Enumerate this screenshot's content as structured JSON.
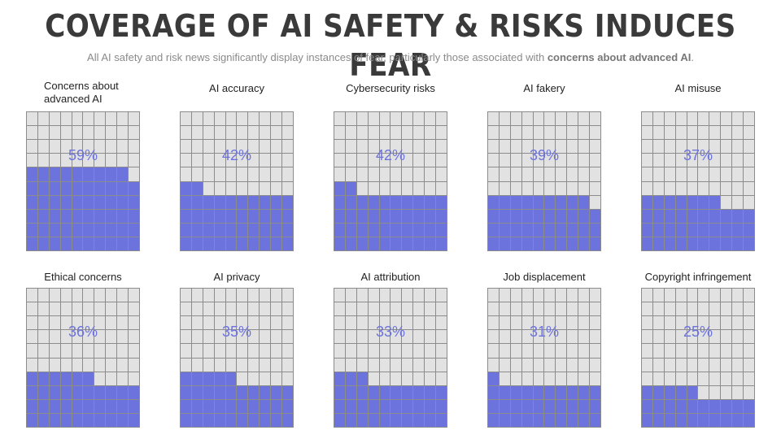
{
  "title": "COVERAGE OF AI SAFETY & RISKS INDUCES FEAR",
  "subtitle_prefix": "All AI safety and risk news significantly display instances of fear, particularly those associated with ",
  "subtitle_emphasis": "concerns about advanced AI",
  "subtitle_suffix": ".",
  "colors": {
    "filled": "#6d73dd",
    "empty": "#e2e2e2",
    "grid": "#8c8c8c"
  },
  "chart_data": {
    "type": "waffle",
    "grid": [
      10,
      10
    ],
    "categories": [
      "Concerns about advanced AI",
      "AI accuracy",
      "Cybersecurity risks",
      "AI fakery",
      "AI misuse",
      "Ethical concerns",
      "AI privacy",
      "AI attribution",
      "Job displacement",
      "Copyright infringement"
    ],
    "values": [
      59,
      42,
      42,
      39,
      37,
      36,
      35,
      33,
      31,
      25
    ],
    "labels": [
      "59%",
      "42%",
      "42%",
      "39%",
      "37%",
      "36%",
      "35%",
      "33%",
      "31%",
      "25%"
    ]
  }
}
